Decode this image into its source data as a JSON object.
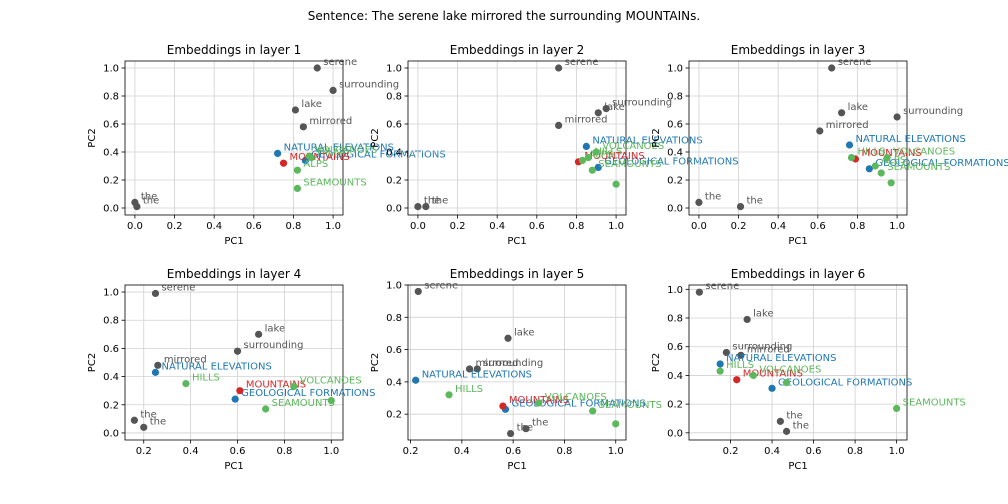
{
  "suptitle": "Sentence: The serene lake mirrored the surrounding MOUNTAINs.",
  "colors": {
    "word": "#555555",
    "blue": "#1f77b4",
    "red": "#d62728",
    "green": "#5cb85c"
  },
  "chart_data": [
    {
      "type": "scatter",
      "title": "Embeddings in layer 1",
      "xlabel": "PC1",
      "ylabel": "PC2",
      "xlim": [
        -0.05,
        1.05
      ],
      "ylim": [
        -0.05,
        1.05
      ],
      "xticks": [
        0.0,
        0.2,
        0.4,
        0.6,
        0.8,
        1.0
      ],
      "xtick_labels": [
        "0.0",
        "0.2",
        "0.4",
        "0.6",
        "0.8",
        "1.0"
      ],
      "yticks": [
        0.0,
        0.2,
        0.4,
        0.6,
        0.8,
        1.0
      ],
      "ytick_labels": [
        "0.0",
        "0.2",
        "0.4",
        "0.6",
        "0.8",
        "1.0"
      ],
      "grid": true,
      "points": [
        {
          "label": "serene",
          "x": 0.92,
          "y": 1.0,
          "color": "word"
        },
        {
          "label": "surrounding",
          "x": 1.0,
          "y": 0.84,
          "color": "word"
        },
        {
          "label": "lake",
          "x": 0.81,
          "y": 0.7,
          "color": "word"
        },
        {
          "label": "mirrored",
          "x": 0.85,
          "y": 0.58,
          "color": "word"
        },
        {
          "label": "the",
          "x": 0.0,
          "y": 0.04,
          "color": "word"
        },
        {
          "label": "the",
          "x": 0.01,
          "y": 0.01,
          "color": "word"
        },
        {
          "label": "NATURAL ELEVATIONS",
          "x": 0.72,
          "y": 0.39,
          "color": "blue"
        },
        {
          "label": "GEOLOGICAL FORMATIONS",
          "x": 0.86,
          "y": 0.34,
          "color": "blue"
        },
        {
          "label": "MOUNTAINS",
          "x": 0.75,
          "y": 0.32,
          "color": "red"
        },
        {
          "label": "VOLCANOES",
          "x": 0.88,
          "y": 0.37,
          "color": "green"
        },
        {
          "label": "HILLS",
          "x": 0.89,
          "y": 0.36,
          "color": "green"
        },
        {
          "label": "ALPS",
          "x": 0.82,
          "y": 0.27,
          "color": "green"
        },
        {
          "label": "SEAMOUNTS",
          "x": 0.82,
          "y": 0.14,
          "color": "green"
        }
      ]
    },
    {
      "type": "scatter",
      "title": "Embeddings in layer 2",
      "xlabel": "PC1",
      "ylabel": "PC2",
      "xlim": [
        -0.05,
        1.05
      ],
      "ylim": [
        -0.05,
        1.05
      ],
      "xticks": [
        0.0,
        0.2,
        0.4,
        0.6,
        0.8,
        1.0
      ],
      "xtick_labels": [
        "0.0",
        "0.2",
        "0.4",
        "0.6",
        "0.8",
        "1.0"
      ],
      "yticks": [
        0.0,
        0.2,
        0.4,
        0.6,
        0.8,
        1.0
      ],
      "ytick_labels": [
        "0.0",
        "0.2",
        "0.4",
        "0.6",
        "0.8",
        "1.0"
      ],
      "grid": true,
      "points": [
        {
          "label": "serene",
          "x": 0.71,
          "y": 1.0,
          "color": "word"
        },
        {
          "label": "surrounding",
          "x": 0.95,
          "y": 0.71,
          "color": "word"
        },
        {
          "label": "lake",
          "x": 0.91,
          "y": 0.68,
          "color": "word"
        },
        {
          "label": "mirrored",
          "x": 0.71,
          "y": 0.59,
          "color": "word"
        },
        {
          "label": "the",
          "x": 0.0,
          "y": 0.01,
          "color": "word"
        },
        {
          "label": "the",
          "x": 0.04,
          "y": 0.01,
          "color": "word"
        },
        {
          "label": "NATURAL ELEVATIONS",
          "x": 0.85,
          "y": 0.44,
          "color": "blue"
        },
        {
          "label": "GEOLOGICAL FORMATIONS",
          "x": 0.91,
          "y": 0.29,
          "color": "blue"
        },
        {
          "label": "MOUNTAINS",
          "x": 0.81,
          "y": 0.33,
          "color": "red"
        },
        {
          "label": "VOLCANOES",
          "x": 0.9,
          "y": 0.4,
          "color": "green"
        },
        {
          "label": "HILLS",
          "x": 0.86,
          "y": 0.36,
          "color": "green"
        },
        {
          "label": "ALPS",
          "x": 0.83,
          "y": 0.34,
          "color": "green"
        },
        {
          "label": "SEAMOUNTS",
          "x": 0.88,
          "y": 0.27,
          "color": "green"
        },
        {
          "label": "",
          "x": 1.0,
          "y": 0.17,
          "color": "green"
        }
      ]
    },
    {
      "type": "scatter",
      "title": "Embeddings in layer 3",
      "xlabel": "PC1",
      "ylabel": "PC2",
      "xlim": [
        -0.05,
        1.05
      ],
      "ylim": [
        -0.05,
        1.05
      ],
      "xticks": [
        0.0,
        0.2,
        0.4,
        0.6,
        0.8,
        1.0
      ],
      "xtick_labels": [
        "0.0",
        "0.2",
        "0.4",
        "0.6",
        "0.8",
        "1.0"
      ],
      "yticks": [
        0.0,
        0.2,
        0.4,
        0.6,
        0.8,
        1.0
      ],
      "ytick_labels": [
        "0.0",
        "0.2",
        "0.4",
        "0.6",
        "0.8",
        "1.0"
      ],
      "grid": true,
      "points": [
        {
          "label": "serene",
          "x": 0.67,
          "y": 1.0,
          "color": "word"
        },
        {
          "label": "surrounding",
          "x": 1.0,
          "y": 0.65,
          "color": "word"
        },
        {
          "label": "lake",
          "x": 0.72,
          "y": 0.68,
          "color": "word"
        },
        {
          "label": "mirrored",
          "x": 0.61,
          "y": 0.55,
          "color": "word"
        },
        {
          "label": "the",
          "x": 0.0,
          "y": 0.04,
          "color": "word"
        },
        {
          "label": "the",
          "x": 0.21,
          "y": 0.01,
          "color": "word"
        },
        {
          "label": "NATURAL ELEVATIONS",
          "x": 0.76,
          "y": 0.45,
          "color": "blue"
        },
        {
          "label": "GEOLOGICAL FORMATIONS",
          "x": 0.86,
          "y": 0.28,
          "color": "blue"
        },
        {
          "label": "MOUNTAINS",
          "x": 0.79,
          "y": 0.35,
          "color": "red"
        },
        {
          "label": "VOLCANOES",
          "x": 0.95,
          "y": 0.36,
          "color": "green"
        },
        {
          "label": "HILLS",
          "x": 0.77,
          "y": 0.36,
          "color": "green"
        },
        {
          "label": "ALPS",
          "x": 0.89,
          "y": 0.3,
          "color": "green"
        },
        {
          "label": "SEAMOUNTS",
          "x": 0.92,
          "y": 0.25,
          "color": "green"
        },
        {
          "label": "",
          "x": 0.97,
          "y": 0.18,
          "color": "green"
        }
      ]
    },
    {
      "type": "scatter",
      "title": "Embeddings in layer 4",
      "xlabel": "PC1",
      "ylabel": "PC2",
      "xlim": [
        0.12,
        1.05
      ],
      "ylim": [
        -0.05,
        1.05
      ],
      "xticks": [
        0.2,
        0.4,
        0.6,
        0.8,
        1.0
      ],
      "xtick_labels": [
        "0.2",
        "0.4",
        "0.6",
        "0.8",
        "1.0"
      ],
      "yticks": [
        0.0,
        0.2,
        0.4,
        0.6,
        0.8,
        1.0
      ],
      "ytick_labels": [
        "0.0",
        "0.2",
        "0.4",
        "0.6",
        "0.8",
        "1.0"
      ],
      "grid": true,
      "points": [
        {
          "label": "serene",
          "x": 0.25,
          "y": 0.99,
          "color": "word"
        },
        {
          "label": "lake",
          "x": 0.69,
          "y": 0.7,
          "color": "word"
        },
        {
          "label": "surrounding",
          "x": 0.6,
          "y": 0.58,
          "color": "word"
        },
        {
          "label": "mirrored",
          "x": 0.26,
          "y": 0.48,
          "color": "word"
        },
        {
          "label": "the",
          "x": 0.16,
          "y": 0.09,
          "color": "word"
        },
        {
          "label": "the",
          "x": 0.2,
          "y": 0.04,
          "color": "word"
        },
        {
          "label": "NATURAL ELEVATIONS",
          "x": 0.25,
          "y": 0.43,
          "color": "blue"
        },
        {
          "label": "GEOLOGICAL FORMATIONS",
          "x": 0.59,
          "y": 0.24,
          "color": "blue"
        },
        {
          "label": "MOUNTAINS",
          "x": 0.61,
          "y": 0.3,
          "color": "red"
        },
        {
          "label": "VOLCANOES",
          "x": 0.84,
          "y": 0.33,
          "color": "green"
        },
        {
          "label": "HILLS",
          "x": 0.38,
          "y": 0.35,
          "color": "green"
        },
        {
          "label": "SEAMOUNTS",
          "x": 0.72,
          "y": 0.17,
          "color": "green"
        },
        {
          "label": "",
          "x": 1.0,
          "y": 0.23,
          "color": "green"
        }
      ]
    },
    {
      "type": "scatter",
      "title": "Embeddings in layer 5",
      "xlabel": "PC1",
      "ylabel": "PC2",
      "xlim": [
        0.19,
        1.04
      ],
      "ylim": [
        0.04,
        1.0
      ],
      "xticks": [
        0.2,
        0.4,
        0.6,
        0.8,
        1.0
      ],
      "xtick_labels": [
        "0.2",
        "0.4",
        "0.6",
        "0.8",
        "1.0"
      ],
      "yticks": [
        0.2,
        0.4,
        0.6,
        0.8,
        1.0
      ],
      "ytick_labels": [
        "0.2",
        "0.4",
        "0.6",
        "0.8",
        "1.0"
      ],
      "grid": true,
      "points": [
        {
          "label": "serene",
          "x": 0.23,
          "y": 0.96,
          "color": "word"
        },
        {
          "label": "lake",
          "x": 0.58,
          "y": 0.67,
          "color": "word"
        },
        {
          "label": "mirrored",
          "x": 0.43,
          "y": 0.48,
          "color": "word"
        },
        {
          "label": "surrounding",
          "x": 0.46,
          "y": 0.48,
          "color": "word"
        },
        {
          "label": "the",
          "x": 0.65,
          "y": 0.11,
          "color": "word"
        },
        {
          "label": "the",
          "x": 0.59,
          "y": 0.08,
          "color": "word"
        },
        {
          "label": "NATURAL ELEVATIONS",
          "x": 0.22,
          "y": 0.41,
          "color": "blue"
        },
        {
          "label": "GEOLOGICAL FORMATIONS",
          "x": 0.57,
          "y": 0.23,
          "color": "blue"
        },
        {
          "label": "MOUNTAINS",
          "x": 0.56,
          "y": 0.25,
          "color": "red"
        },
        {
          "label": "VOLCANOES",
          "x": 0.7,
          "y": 0.27,
          "color": "green"
        },
        {
          "label": "HILLS",
          "x": 0.35,
          "y": 0.32,
          "color": "green"
        },
        {
          "label": "SEAMOUNTS",
          "x": 0.91,
          "y": 0.22,
          "color": "green"
        },
        {
          "label": "",
          "x": 1.0,
          "y": 0.14,
          "color": "green"
        }
      ]
    },
    {
      "type": "scatter",
      "title": "Embeddings in layer 6",
      "xlabel": "PC1",
      "ylabel": "PC2",
      "xlim": [
        0.0,
        1.05
      ],
      "ylim": [
        -0.05,
        1.03
      ],
      "xticks": [
        0.2,
        0.4,
        0.6,
        0.8,
        1.0
      ],
      "xtick_labels": [
        "0.2",
        "0.4",
        "0.6",
        "0.8",
        "1.0"
      ],
      "yticks": [
        0.0,
        0.2,
        0.4,
        0.6,
        0.8,
        1.0
      ],
      "ytick_labels": [
        "0.0",
        "0.2",
        "0.4",
        "0.6",
        "0.8",
        "1.0"
      ],
      "grid": true,
      "points": [
        {
          "label": "serene",
          "x": 0.05,
          "y": 0.98,
          "color": "word"
        },
        {
          "label": "lake",
          "x": 0.28,
          "y": 0.79,
          "color": "word"
        },
        {
          "label": "surrounding",
          "x": 0.18,
          "y": 0.56,
          "color": "word"
        },
        {
          "label": "mirrored",
          "x": 0.25,
          "y": 0.54,
          "color": "word"
        },
        {
          "label": "the",
          "x": 0.44,
          "y": 0.08,
          "color": "word"
        },
        {
          "label": "the",
          "x": 0.47,
          "y": 0.01,
          "color": "word"
        },
        {
          "label": "NATURAL ELEVATIONS",
          "x": 0.15,
          "y": 0.48,
          "color": "blue"
        },
        {
          "label": "GEOLOGICAL FORMATIONS",
          "x": 0.4,
          "y": 0.31,
          "color": "blue"
        },
        {
          "label": "MOUNTAINS",
          "x": 0.23,
          "y": 0.37,
          "color": "red"
        },
        {
          "label": "VOLCANOES",
          "x": 0.31,
          "y": 0.4,
          "color": "green"
        },
        {
          "label": "HILLS",
          "x": 0.15,
          "y": 0.43,
          "color": "green"
        },
        {
          "label": "SEAMOUNTS",
          "x": 1.0,
          "y": 0.17,
          "color": "green"
        },
        {
          "label": "",
          "x": 0.47,
          "y": 0.35,
          "color": "green"
        }
      ]
    }
  ]
}
